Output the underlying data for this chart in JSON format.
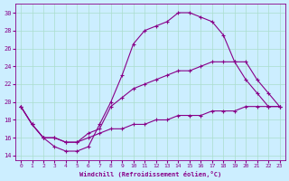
{
  "xlabel": "Windchill (Refroidissement éolien,°C)",
  "bg_color": "#cceeff",
  "line_color": "#880088",
  "grid_color": "#aaddcc",
  "xlim": [
    -0.5,
    23.5
  ],
  "ylim": [
    13.5,
    31.0
  ],
  "xticks": [
    0,
    1,
    2,
    3,
    4,
    5,
    6,
    7,
    8,
    9,
    10,
    11,
    12,
    13,
    14,
    15,
    16,
    17,
    18,
    19,
    20,
    21,
    22,
    23
  ],
  "yticks": [
    14,
    16,
    18,
    20,
    22,
    24,
    26,
    28,
    30
  ],
  "line1_x": [
    0,
    1,
    2,
    3,
    4,
    5,
    6,
    7,
    8,
    9,
    10,
    11,
    12,
    13,
    14,
    15,
    16,
    17,
    18,
    19,
    20,
    21,
    22,
    23
  ],
  "line1_y": [
    19.5,
    17.5,
    16.0,
    15.0,
    14.5,
    14.5,
    15.0,
    17.5,
    20.0,
    23.0,
    26.5,
    28.0,
    28.5,
    29.0,
    30.0,
    30.0,
    29.5,
    29.0,
    27.5,
    24.5,
    22.5,
    21.0,
    19.5,
    19.5
  ],
  "line2_x": [
    0,
    1,
    2,
    3,
    4,
    5,
    6,
    7,
    8,
    9,
    10,
    11,
    12,
    13,
    14,
    15,
    16,
    17,
    18,
    19,
    20,
    21,
    22,
    23
  ],
  "line2_y": [
    19.5,
    17.5,
    16.0,
    16.0,
    15.5,
    15.5,
    16.5,
    17.0,
    19.5,
    20.5,
    21.5,
    22.0,
    22.5,
    23.0,
    23.5,
    23.5,
    24.0,
    24.5,
    24.5,
    24.5,
    24.5,
    22.5,
    21.0,
    19.5
  ],
  "line3_x": [
    0,
    1,
    2,
    3,
    4,
    5,
    6,
    7,
    8,
    9,
    10,
    11,
    12,
    13,
    14,
    15,
    16,
    17,
    18,
    19,
    20,
    21,
    22,
    23
  ],
  "line3_y": [
    19.5,
    17.5,
    16.0,
    16.0,
    15.5,
    15.5,
    16.0,
    16.5,
    17.0,
    17.0,
    17.5,
    17.5,
    18.0,
    18.0,
    18.5,
    18.5,
    18.5,
    19.0,
    19.0,
    19.0,
    19.5,
    19.5,
    19.5,
    19.5
  ]
}
